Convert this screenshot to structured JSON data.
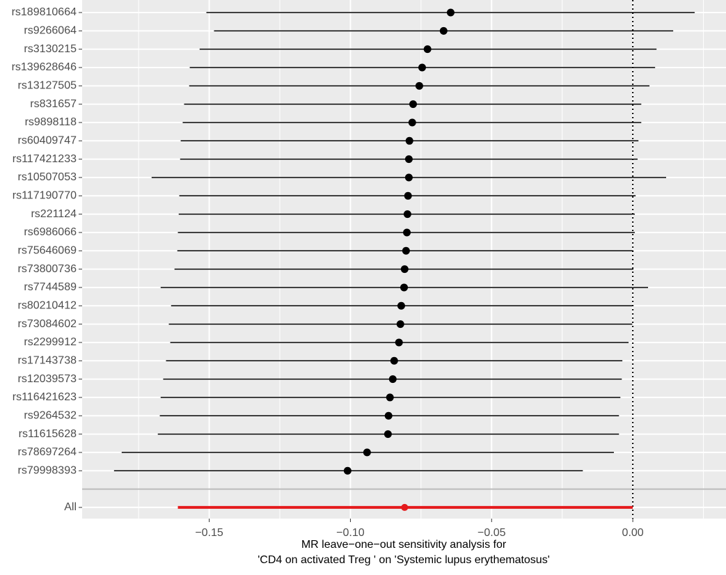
{
  "chart_data": {
    "type": "forest",
    "xlabel": [
      "MR leave−one−out sensitivity analysis for",
      "'CD4 on activated Treg ' on 'Systemic lupus erythematosus'"
    ],
    "categories": [
      "rs189810664",
      "rs9266064",
      "rs3130215",
      "rs139628646",
      "rs13127505",
      "rs831657",
      "rs9898118",
      "rs60409747",
      "rs117421233",
      "rs10507053",
      "rs117190770",
      "rs221124",
      "rs6986066",
      "rs75646069",
      "rs73800736",
      "rs7744589",
      "rs80210412",
      "rs73084602",
      "rs2299912",
      "rs17143738",
      "rs12039573",
      "rs116421623",
      "rs9264532",
      "rs11615628",
      "rs78697264",
      "rs79998393"
    ],
    "estimate": [
      -0.0645,
      -0.067,
      -0.0727,
      -0.0746,
      -0.0756,
      -0.0778,
      -0.0781,
      -0.0791,
      -0.0793,
      -0.0793,
      -0.0796,
      -0.0798,
      -0.08,
      -0.0803,
      -0.0808,
      -0.081,
      -0.082,
      -0.0823,
      -0.0828,
      -0.0845,
      -0.085,
      -0.086,
      -0.0865,
      -0.0867,
      -0.0941,
      -0.101
    ],
    "lower": [
      -0.151,
      -0.1483,
      -0.1534,
      -0.1569,
      -0.1571,
      -0.1589,
      -0.1594,
      -0.1601,
      -0.1603,
      -0.1704,
      -0.1606,
      -0.1608,
      -0.1611,
      -0.1613,
      -0.1623,
      -0.1672,
      -0.1635,
      -0.1643,
      -0.1638,
      -0.1653,
      -0.1663,
      -0.1672,
      -0.1675,
      -0.1682,
      -0.181,
      -0.1837
    ],
    "upper": [
      0.0219,
      0.0143,
      0.0084,
      0.0079,
      0.0059,
      0.003,
      0.003,
      0.002,
      0.0017,
      0.0118,
      0.001,
      0.0007,
      0.0007,
      0.0002,
      0.0002,
      0.0054,
      -0.0002,
      -0.0002,
      -0.0015,
      -0.0037,
      -0.0039,
      -0.0044,
      -0.0049,
      -0.0049,
      -0.0067,
      -0.0177
    ],
    "color": "#000000",
    "summary": {
      "label": "All",
      "estimate": -0.0808,
      "lower": -0.1611,
      "upper": 0.0,
      "color": "#e41a1c"
    },
    "xlim": [
      -0.195,
      0.033
    ],
    "xticks": [
      {
        "value": -0.15,
        "label": "−0.15"
      },
      {
        "value": -0.1,
        "label": "−0.10"
      },
      {
        "value": -0.05,
        "label": "−0.05"
      },
      {
        "value": 0,
        "label": "0.00"
      }
    ],
    "xminor": [
      -0.175,
      -0.125,
      -0.075,
      -0.025,
      0.025
    ],
    "refline": 0,
    "grid": true
  }
}
